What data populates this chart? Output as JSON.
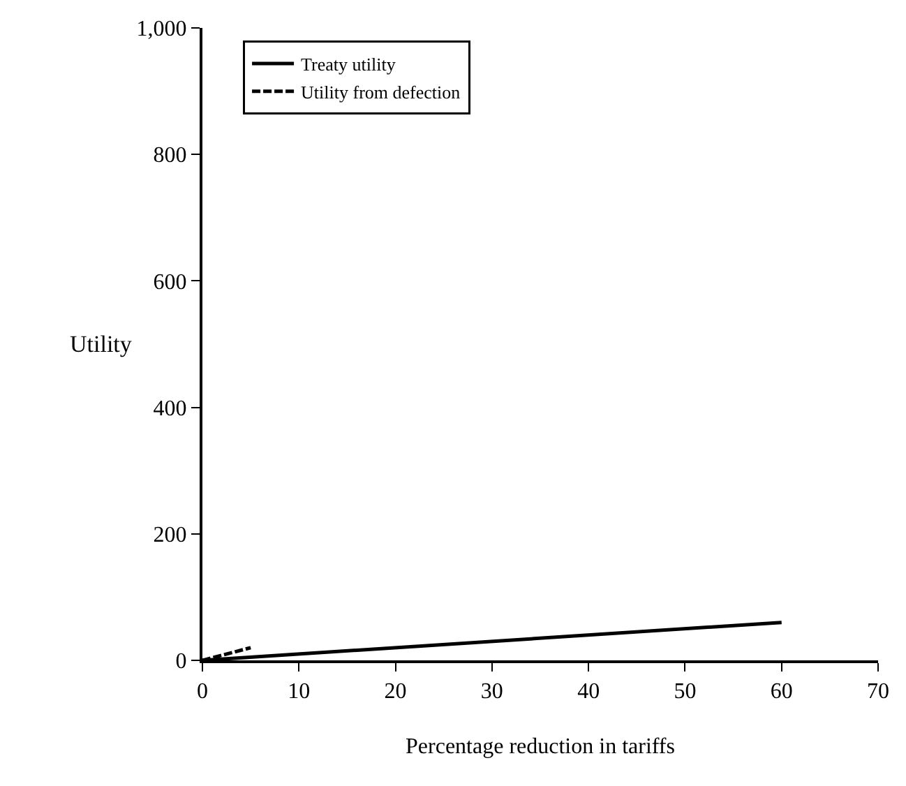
{
  "chart_data": {
    "type": "line",
    "xlabel": "Percentage reduction in tariffs",
    "ylabel": "Utility",
    "xlim": [
      0,
      70
    ],
    "xticks": [
      0,
      10,
      20,
      30,
      40,
      50,
      60,
      70
    ],
    "ylim": [
      0,
      1000
    ],
    "yticks": [
      {
        "value": 0,
        "label": "0"
      },
      {
        "value": 200,
        "label": "200"
      },
      {
        "value": 400,
        "label": "400"
      },
      {
        "value": 600,
        "label": "600"
      },
      {
        "value": 800,
        "label": "800"
      },
      {
        "value": 1000,
        "label": "1,000"
      }
    ],
    "legend": "top left",
    "series": [
      {
        "name": "Treaty utility",
        "color": "#000000",
        "x": [
          0,
          60
        ],
        "values": [
          0,
          60
        ],
        "line_style": "solid"
      },
      {
        "name": "Utility from defection",
        "color": "#000000",
        "x": [
          0,
          5
        ],
        "values": [
          0,
          20
        ],
        "line_style": "dashed"
      }
    ]
  }
}
